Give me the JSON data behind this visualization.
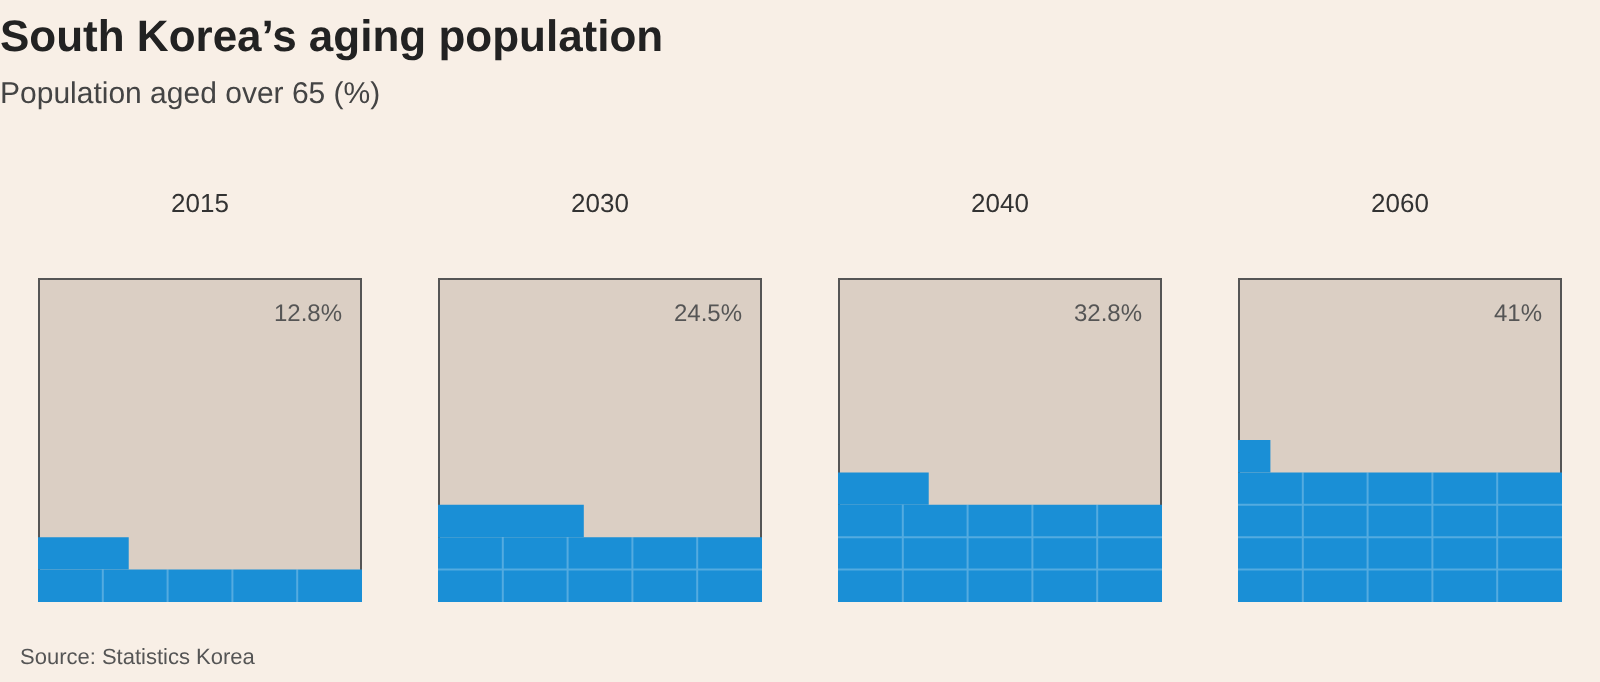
{
  "chart_data": {
    "type": "other",
    "title": "South Korea’s aging population",
    "subtitle": "Population aged over 65 (%)",
    "categories": [
      "2015",
      "2030",
      "2040",
      "2060"
    ],
    "values": [
      12.8,
      24.5,
      32.8,
      41
    ],
    "value_labels": [
      "12.8%",
      "24.5%",
      "32.8%",
      "41%"
    ],
    "annotations": [
      "Source: Statistics Korea"
    ]
  }
}
